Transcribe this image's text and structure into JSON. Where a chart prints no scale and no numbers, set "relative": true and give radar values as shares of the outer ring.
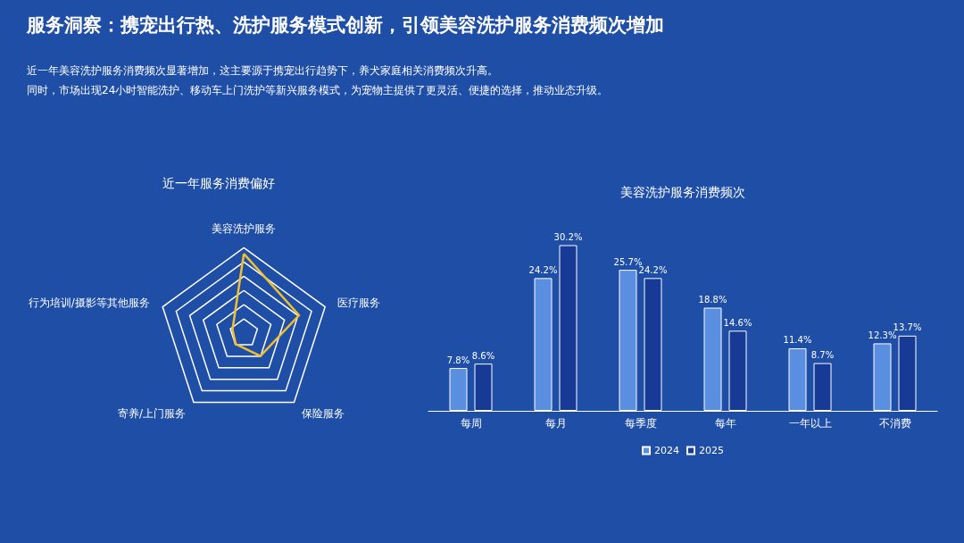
{
  "chart_data": [
    {
      "type": "other",
      "title": "服务洞察：携宠出行热、洗护服务模式创新，引领美容洗护服务消费频次增加",
      "annotations": [
        "近一年美容洗护服务消费频次显著增加，这主要源于携宠出行趋势下，养犬家庭相关消费频次升高。",
        "同时，市场出现24小时智能洗护、移动车上门洗护等新兴服务模式，为宠物主提供了更灵活、便捷的选择，推动业态升级。"
      ]
    },
    {
      "type": "radar",
      "title": "近一年服务消费偏好",
      "relative": true,
      "categories": [
        "美容洗护服务",
        "医疗服务",
        "保险服务",
        "寄养/上门服务",
        "行为培训/摄影等其他服务"
      ],
      "series": [
        {
          "color": "#f0c030",
          "values": [
            0.93,
            0.68,
            0.33,
            0.16,
            0.14
          ]
        }
      ],
      "legend": false
    },
    {
      "type": "bar",
      "title": "美容洗护服务消费频次",
      "categories": [
        "每周",
        "每月",
        "每季度",
        "每年",
        "一年以上",
        "不消费"
      ],
      "series": [
        {
          "name": "2024",
          "color": "#5a8ee0",
          "values": [
            7.8,
            24.2,
            25.7,
            18.8,
            11.4,
            12.3
          ],
          "value_labels": [
            "7.8%",
            "24.2%",
            "25.7%",
            "18.8%",
            "11.4%",
            "12.3%"
          ]
        },
        {
          "name": "2025",
          "color": "#163a96",
          "values": [
            8.6,
            30.2,
            24.2,
            14.6,
            8.7,
            13.7
          ],
          "value_labels": [
            "8.6%",
            "30.2%",
            "24.2%",
            "14.6%",
            "8.7%",
            "13.7%"
          ]
        }
      ],
      "tick_labels": "x",
      "legend": "bottom"
    }
  ]
}
